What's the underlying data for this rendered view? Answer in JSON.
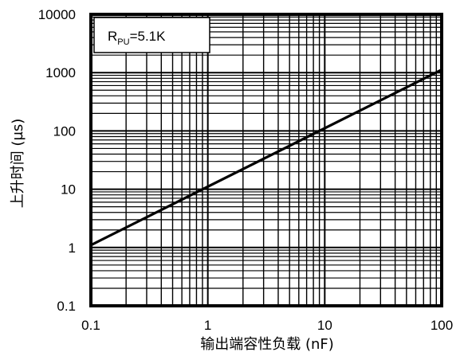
{
  "chart_data": {
    "type": "line",
    "x_scale": "log",
    "y_scale": "log",
    "xlim": [
      0.1,
      100
    ],
    "ylim": [
      0.1,
      10000
    ],
    "grid": true,
    "xlabel": "输出端容性负载 (nF)",
    "ylabel": "上升时间 (µs)",
    "x_ticks": [
      0.1,
      1,
      10,
      100
    ],
    "x_tick_labels": [
      "0.1",
      "1",
      "10",
      "100"
    ],
    "y_ticks": [
      0.1,
      1,
      10,
      100,
      1000,
      10000
    ],
    "y_tick_labels": [
      "0.1",
      "1",
      "10",
      "100",
      "1000",
      "10000"
    ],
    "legend": {
      "placement": "top-left",
      "text_main": "R",
      "text_sub": "PU",
      "text_rest": "=5.1K"
    },
    "series": [
      {
        "x": [
          0.1,
          100
        ],
        "y": [
          1.1,
          1120
        ]
      }
    ],
    "line_color": "#000000"
  }
}
